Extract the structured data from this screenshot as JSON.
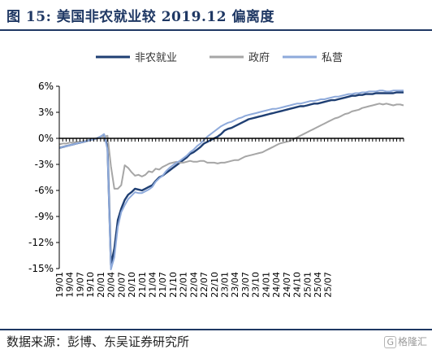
{
  "header": {
    "title": "图 15:  美国非农就业较 2019.12 偏离度"
  },
  "footer": {
    "source": "数据来源：彭博、东吴证券研究所",
    "watermark_text": "格隆汇"
  },
  "colors": {
    "nonfarm": "#1f3f73",
    "government": "#a6a6a6",
    "private": "#8eaadb",
    "heading": "#1f3864"
  },
  "chart_data": {
    "type": "line",
    "title": "",
    "xlabel": "",
    "ylabel": "",
    "ylim": [
      -15,
      6
    ],
    "yticks": [
      6,
      3,
      0,
      -3,
      -6,
      -9,
      -12,
      -15
    ],
    "ytick_labels": [
      "6%",
      "3%",
      "0%",
      "-3%",
      "-6%",
      "-9%",
      "-12%",
      "-15%"
    ],
    "grid": false,
    "legend_position": "top",
    "x_tick_labels": [
      "19/01",
      "19/04",
      "19/07",
      "19/10",
      "20/01",
      "20/04",
      "20/07",
      "20/10",
      "21/01",
      "21/04",
      "21/07",
      "21/10",
      "22/01",
      "22/04",
      "22/07",
      "22/10",
      "23/01",
      "23/04",
      "23/07",
      "23/10",
      "24/01",
      "24/04",
      "24/07",
      "24/10",
      "25/01",
      "25/04",
      "25/07"
    ],
    "x_start": "2019-01",
    "series": [
      {
        "name": "非农就业",
        "color": "#1f3f73",
        "values": [
          -1.1,
          -1.0,
          -0.9,
          -0.8,
          -0.7,
          -0.6,
          -0.5,
          -0.4,
          -0.3,
          -0.2,
          -0.1,
          0.0,
          0.2,
          0.4,
          -1.0,
          -14.6,
          -12.7,
          -9.4,
          -8.1,
          -7.1,
          -6.5,
          -6.2,
          -5.8,
          -5.9,
          -6.0,
          -5.8,
          -5.6,
          -5.4,
          -4.9,
          -4.5,
          -4.3,
          -4.0,
          -3.7,
          -3.4,
          -3.1,
          -2.8,
          -2.5,
          -2.2,
          -1.8,
          -1.6,
          -1.3,
          -1.0,
          -0.6,
          -0.4,
          -0.2,
          0.0,
          0.2,
          0.5,
          0.9,
          1.1,
          1.2,
          1.4,
          1.6,
          1.8,
          2.0,
          2.2,
          2.3,
          2.4,
          2.5,
          2.6,
          2.7,
          2.8,
          2.9,
          3.0,
          3.1,
          3.2,
          3.3,
          3.4,
          3.5,
          3.6,
          3.7,
          3.7,
          3.8,
          3.9,
          4.0,
          4.0,
          4.1,
          4.2,
          4.3,
          4.4,
          4.4,
          4.5,
          4.6,
          4.7,
          4.8,
          4.9,
          4.9,
          5.0,
          5.0,
          5.1,
          5.1,
          5.1,
          5.2,
          5.2,
          5.2,
          5.2,
          5.2,
          5.2,
          5.3,
          5.3,
          5.3
        ]
      },
      {
        "name": "政府",
        "color": "#a6a6a6",
        "values": [
          -0.7,
          -0.6,
          -0.6,
          -0.5,
          -0.5,
          -0.4,
          -0.4,
          -0.3,
          -0.3,
          -0.2,
          -0.1,
          0.0,
          0.2,
          0.2,
          0.3,
          -3.2,
          -5.8,
          -5.8,
          -5.4,
          -3.1,
          -3.4,
          -3.9,
          -4.3,
          -4.2,
          -4.4,
          -4.2,
          -3.8,
          -3.9,
          -3.5,
          -3.6,
          -3.3,
          -3.1,
          -2.9,
          -2.8,
          -2.7,
          -2.8,
          -2.8,
          -2.7,
          -2.6,
          -2.7,
          -2.7,
          -2.6,
          -2.6,
          -2.8,
          -2.8,
          -2.8,
          -2.9,
          -2.8,
          -2.8,
          -2.7,
          -2.6,
          -2.5,
          -2.5,
          -2.3,
          -2.1,
          -2.0,
          -1.9,
          -1.8,
          -1.7,
          -1.6,
          -1.4,
          -1.2,
          -1.0,
          -0.8,
          -0.6,
          -0.5,
          -0.4,
          -0.3,
          -0.1,
          0.1,
          0.3,
          0.5,
          0.7,
          0.9,
          1.1,
          1.3,
          1.5,
          1.7,
          1.9,
          2.1,
          2.3,
          2.4,
          2.6,
          2.8,
          2.9,
          3.1,
          3.2,
          3.3,
          3.5,
          3.6,
          3.7,
          3.8,
          3.9,
          4.0,
          3.9,
          4.0,
          3.9,
          3.8,
          3.9,
          3.9,
          3.8
        ]
      },
      {
        "name": "私营",
        "color": "#8eaadb",
        "values": [
          -1.1,
          -1.0,
          -0.9,
          -0.8,
          -0.7,
          -0.6,
          -0.5,
          -0.4,
          -0.3,
          -0.2,
          -0.1,
          0.0,
          0.2,
          0.5,
          -1.3,
          -15.1,
          -13.7,
          -10.2,
          -8.5,
          -7.7,
          -7.0,
          -6.6,
          -6.2,
          -6.3,
          -6.3,
          -6.1,
          -5.9,
          -5.6,
          -5.0,
          -4.6,
          -4.3,
          -3.8,
          -3.4,
          -3.1,
          -2.8,
          -2.6,
          -2.3,
          -2.0,
          -1.6,
          -1.3,
          -0.9,
          -0.6,
          -0.2,
          0.2,
          0.5,
          0.8,
          1.1,
          1.4,
          1.6,
          1.8,
          1.9,
          2.1,
          2.3,
          2.4,
          2.6,
          2.7,
          2.8,
          2.9,
          3.0,
          3.1,
          3.2,
          3.3,
          3.4,
          3.4,
          3.5,
          3.6,
          3.7,
          3.8,
          3.9,
          4.0,
          4.0,
          4.1,
          4.2,
          4.3,
          4.3,
          4.4,
          4.5,
          4.5,
          4.6,
          4.7,
          4.8,
          4.8,
          4.9,
          5.0,
          5.1,
          5.1,
          5.2,
          5.2,
          5.3,
          5.3,
          5.4,
          5.4,
          5.4,
          5.5,
          5.5,
          5.4,
          5.4,
          5.5,
          5.5,
          5.5,
          5.5
        ]
      }
    ]
  }
}
